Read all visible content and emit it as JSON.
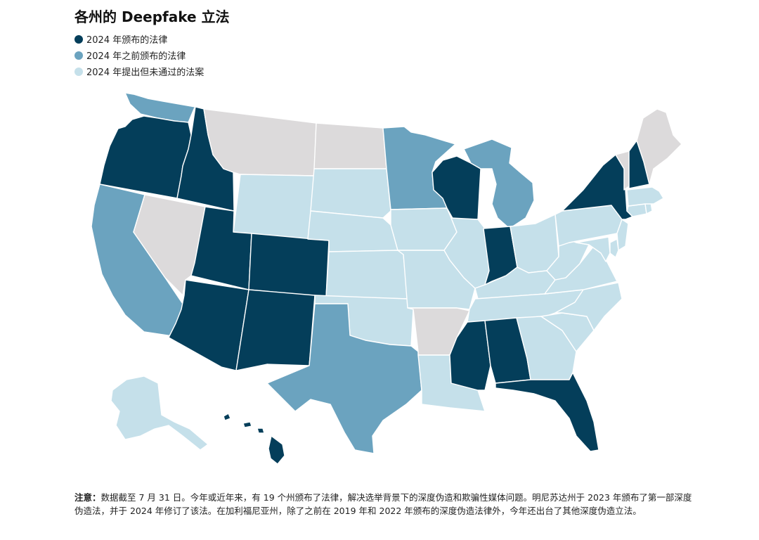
{
  "title": "各州的 Deepfake 立法",
  "colors": {
    "enacted_2024": "#043e5a",
    "enacted_before": "#6ba3bf",
    "proposed": "#c5e0ea",
    "none": "#dcdadb"
  },
  "legend": [
    {
      "label": "2024 年颁布的法律",
      "category": "enacted_2024"
    },
    {
      "label": "2024 年之前颁布的法律",
      "category": "enacted_before"
    },
    {
      "label": "2024 年提出但未通过的法案",
      "category": "proposed"
    }
  ],
  "note": {
    "label": "注意：",
    "text": "数据截至 7 月 31 日。今年或近年来，有 19 个州颁布了法律，解决选举背景下的深度伪造和欺骗性媒体问题。明尼苏达州于 2023 年颁布了第一部深度伪造法，并于 2024 年修订了该法。在加利福尼亚州，除了之前在 2019 年和 2022 年颁布的深度伪造法律外，今年还出台了其他深度伪造立法。"
  },
  "states": [
    {
      "state": "WA",
      "category": "enacted_before"
    },
    {
      "state": "OR",
      "category": "enacted_2024"
    },
    {
      "state": "CA",
      "category": "enacted_before"
    },
    {
      "state": "NV",
      "category": "none"
    },
    {
      "state": "ID",
      "category": "enacted_2024"
    },
    {
      "state": "MT",
      "category": "none"
    },
    {
      "state": "WY",
      "category": "proposed"
    },
    {
      "state": "UT",
      "category": "enacted_2024"
    },
    {
      "state": "CO",
      "category": "enacted_2024"
    },
    {
      "state": "AZ",
      "category": "enacted_2024"
    },
    {
      "state": "NM",
      "category": "enacted_2024"
    },
    {
      "state": "ND",
      "category": "none"
    },
    {
      "state": "SD",
      "category": "proposed"
    },
    {
      "state": "NE",
      "category": "proposed"
    },
    {
      "state": "KS",
      "category": "proposed"
    },
    {
      "state": "OK",
      "category": "proposed"
    },
    {
      "state": "TX",
      "category": "enacted_before"
    },
    {
      "state": "MN",
      "category": "enacted_before"
    },
    {
      "state": "IA",
      "category": "proposed"
    },
    {
      "state": "MO",
      "category": "proposed"
    },
    {
      "state": "AR",
      "category": "none"
    },
    {
      "state": "LA",
      "category": "proposed"
    },
    {
      "state": "WI",
      "category": "enacted_2024"
    },
    {
      "state": "IL",
      "category": "proposed"
    },
    {
      "state": "MI",
      "category": "enacted_before"
    },
    {
      "state": "IN",
      "category": "enacted_2024"
    },
    {
      "state": "OH",
      "category": "proposed"
    },
    {
      "state": "KY",
      "category": "proposed"
    },
    {
      "state": "TN",
      "category": "proposed"
    },
    {
      "state": "MS",
      "category": "enacted_2024"
    },
    {
      "state": "AL",
      "category": "enacted_2024"
    },
    {
      "state": "GA",
      "category": "proposed"
    },
    {
      "state": "FL",
      "category": "enacted_2024"
    },
    {
      "state": "SC",
      "category": "proposed"
    },
    {
      "state": "NC",
      "category": "proposed"
    },
    {
      "state": "VA",
      "category": "proposed"
    },
    {
      "state": "WV",
      "category": "proposed"
    },
    {
      "state": "PA",
      "category": "proposed"
    },
    {
      "state": "NY",
      "category": "enacted_2024"
    },
    {
      "state": "NJ",
      "category": "proposed"
    },
    {
      "state": "DE",
      "category": "proposed"
    },
    {
      "state": "MD",
      "category": "proposed"
    },
    {
      "state": "CT",
      "category": "proposed"
    },
    {
      "state": "RI",
      "category": "proposed"
    },
    {
      "state": "MA",
      "category": "proposed"
    },
    {
      "state": "VT",
      "category": "none"
    },
    {
      "state": "NH",
      "category": "enacted_2024"
    },
    {
      "state": "ME",
      "category": "none"
    },
    {
      "state": "AK",
      "category": "proposed"
    },
    {
      "state": "HI",
      "category": "enacted_2024"
    }
  ]
}
